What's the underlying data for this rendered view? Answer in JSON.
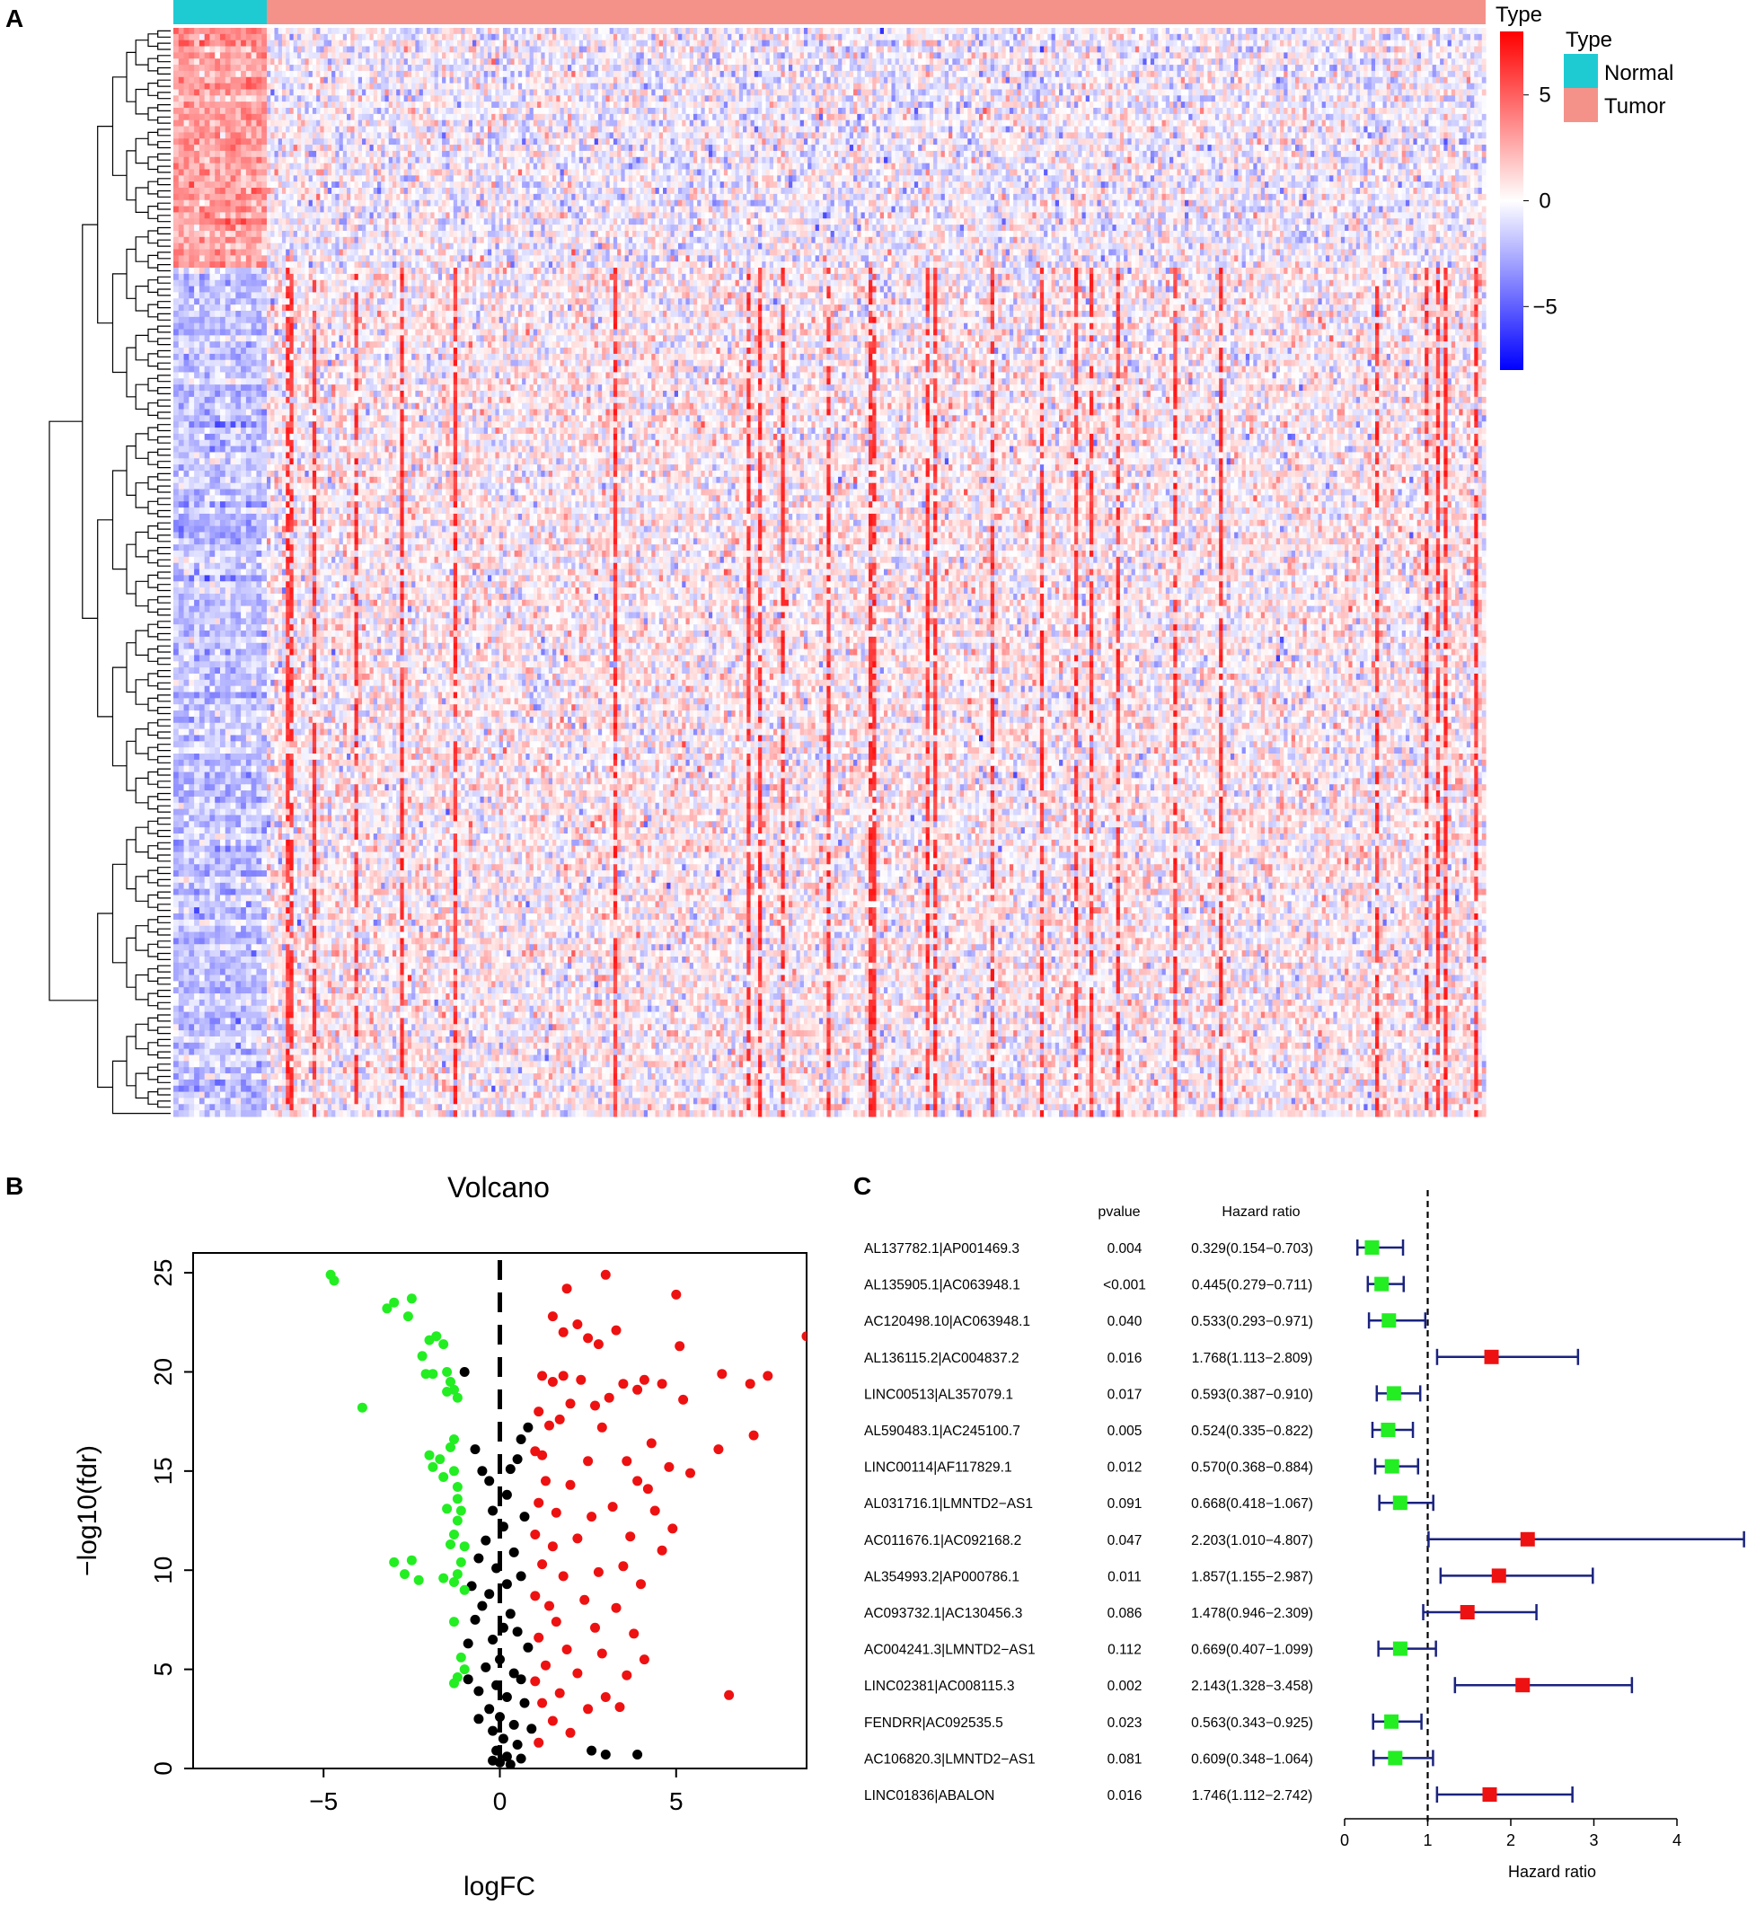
{
  "panels": {
    "a_label": "A",
    "b_label": "B",
    "c_label": "C"
  },
  "colors": {
    "normal": "#1ECBD3",
    "tumor": "#F4928A",
    "heat_low": "#0000FF",
    "heat_mid": "#FFFFFF",
    "heat_high": "#FF0000",
    "volcano_down": "#22EE22",
    "volcano_up": "#EE1111",
    "volcano_ns": "#000000",
    "forest_line": "#1A237E",
    "forest_protective": "#22EE22",
    "forest_risk": "#EE1111"
  },
  "chart_data": [
    {
      "type": "heatmap",
      "panel": "A",
      "annotation_title": "Type",
      "colorbar_title": "Type",
      "colorbar_ticks": [
        5,
        0,
        -5
      ],
      "colorbar_range": [
        -8,
        8
      ],
      "groups": [
        {
          "name": "Normal",
          "n_samples": 37
        },
        {
          "name": "Tumor",
          "n_samples": 530
        }
      ],
      "legend": [
        "Normal",
        "Tumor"
      ],
      "clusters": [
        {
          "name": "up_in_normal",
          "rows": 39,
          "normal_mean": 2.6,
          "tumor_mean": -0.2
        },
        {
          "name": "down_in_normal",
          "rows": 138,
          "normal_mean": -1.6,
          "tumor_mean": 0.25
        }
      ]
    },
    {
      "type": "scatter",
      "panel": "B",
      "title": "Volcano",
      "xlabel": "logFC",
      "ylabel": "−log10(fdr)",
      "xlim": [
        -8.7,
        8.7
      ],
      "ylim": [
        0,
        26
      ],
      "xticks": [
        -5,
        0,
        5
      ],
      "xtick_labels": [
        "−5",
        "0",
        "5"
      ],
      "yticks": [
        0,
        5,
        10,
        15,
        20,
        25
      ],
      "cutoff_x": 0,
      "series": [
        {
          "name": "down",
          "points": [
            [
              -4.8,
              24.9
            ],
            [
              -4.7,
              24.6
            ],
            [
              -3.2,
              23.2
            ],
            [
              -3.0,
              23.5
            ],
            [
              -2.5,
              23.7
            ],
            [
              -2.6,
              22.8
            ],
            [
              -2.0,
              21.6
            ],
            [
              -1.8,
              21.8
            ],
            [
              -1.6,
              21.4
            ],
            [
              -2.2,
              20.8
            ],
            [
              -2.1,
              19.9
            ],
            [
              -1.9,
              19.9
            ],
            [
              -1.5,
              20.0
            ],
            [
              -1.4,
              19.5
            ],
            [
              -1.3,
              19.1
            ],
            [
              -1.2,
              18.7
            ],
            [
              -1.5,
              19.0
            ],
            [
              -3.9,
              18.2
            ],
            [
              -1.3,
              16.6
            ],
            [
              -1.4,
              16.2
            ],
            [
              -2.0,
              15.8
            ],
            [
              -1.7,
              15.6
            ],
            [
              -1.9,
              15.2
            ],
            [
              -1.3,
              15.0
            ],
            [
              -1.6,
              14.7
            ],
            [
              -1.2,
              14.2
            ],
            [
              -1.2,
              13.6
            ],
            [
              -1.5,
              13.1
            ],
            [
              -1.1,
              13.0
            ],
            [
              -1.2,
              12.5
            ],
            [
              -1.3,
              11.8
            ],
            [
              -1.4,
              11.3
            ],
            [
              -1.0,
              11.2
            ],
            [
              -1.1,
              10.4
            ],
            [
              -1.2,
              9.8
            ],
            [
              -1.3,
              9.4
            ],
            [
              -1.6,
              9.6
            ],
            [
              -2.3,
              9.5
            ],
            [
              -2.5,
              10.5
            ],
            [
              -2.7,
              9.8
            ],
            [
              -3.0,
              10.4
            ],
            [
              -1.0,
              9.0
            ],
            [
              -1.3,
              7.4
            ],
            [
              -1.1,
              5.6
            ],
            [
              -1.0,
              5.0
            ],
            [
              -1.2,
              4.6
            ],
            [
              -1.3,
              4.3
            ]
          ]
        },
        {
          "name": "up",
          "points": [
            [
              1.9,
              24.2
            ],
            [
              3.0,
              24.9
            ],
            [
              5.0,
              23.9
            ],
            [
              8.7,
              21.8
            ],
            [
              1.5,
              22.8
            ],
            [
              1.8,
              22.0
            ],
            [
              2.2,
              22.4
            ],
            [
              2.5,
              21.7
            ],
            [
              3.3,
              22.1
            ],
            [
              2.8,
              21.4
            ],
            [
              5.1,
              21.3
            ],
            [
              6.3,
              19.9
            ],
            [
              7.1,
              19.4
            ],
            [
              7.6,
              19.8
            ],
            [
              1.2,
              19.8
            ],
            [
              1.5,
              19.5
            ],
            [
              1.8,
              19.8
            ],
            [
              2.3,
              19.6
            ],
            [
              3.5,
              19.4
            ],
            [
              3.9,
              19.1
            ],
            [
              4.1,
              19.6
            ],
            [
              4.6,
              19.4
            ],
            [
              5.2,
              18.6
            ],
            [
              1.1,
              18.0
            ],
            [
              2.0,
              18.4
            ],
            [
              2.7,
              18.3
            ],
            [
              3.1,
              18.7
            ],
            [
              1.4,
              17.3
            ],
            [
              1.7,
              17.6
            ],
            [
              2.9,
              17.2
            ],
            [
              7.2,
              16.8
            ],
            [
              4.3,
              16.4
            ],
            [
              1.0,
              16.0
            ],
            [
              1.2,
              15.8
            ],
            [
              2.5,
              15.5
            ],
            [
              3.6,
              15.5
            ],
            [
              4.8,
              15.2
            ],
            [
              5.4,
              14.9
            ],
            [
              6.2,
              16.1
            ],
            [
              1.3,
              14.5
            ],
            [
              2.0,
              14.3
            ],
            [
              3.9,
              14.5
            ],
            [
              4.2,
              14.1
            ],
            [
              1.1,
              13.4
            ],
            [
              1.6,
              12.9
            ],
            [
              2.6,
              12.7
            ],
            [
              3.2,
              13.2
            ],
            [
              4.4,
              13.0
            ],
            [
              4.9,
              12.1
            ],
            [
              1.0,
              11.8
            ],
            [
              1.5,
              11.2
            ],
            [
              2.2,
              11.6
            ],
            [
              3.7,
              11.7
            ],
            [
              4.6,
              11.0
            ],
            [
              1.2,
              10.3
            ],
            [
              1.8,
              9.7
            ],
            [
              2.8,
              9.9
            ],
            [
              3.5,
              10.2
            ],
            [
              4.0,
              9.3
            ],
            [
              1.0,
              8.7
            ],
            [
              1.4,
              8.2
            ],
            [
              2.4,
              8.5
            ],
            [
              3.3,
              8.1
            ],
            [
              1.6,
              7.4
            ],
            [
              2.7,
              7.1
            ],
            [
              3.8,
              6.8
            ],
            [
              1.1,
              6.6
            ],
            [
              1.9,
              6.0
            ],
            [
              2.9,
              5.8
            ],
            [
              4.1,
              5.5
            ],
            [
              1.3,
              5.2
            ],
            [
              2.2,
              4.8
            ],
            [
              3.6,
              4.7
            ],
            [
              1.0,
              4.4
            ],
            [
              1.7,
              3.8
            ],
            [
              3.0,
              3.6
            ],
            [
              6.5,
              3.7
            ],
            [
              1.2,
              3.3
            ],
            [
              2.5,
              3.0
            ],
            [
              1.5,
              2.4
            ],
            [
              2.0,
              1.8
            ],
            [
              1.1,
              1.3
            ],
            [
              3.4,
              3.1
            ]
          ]
        },
        {
          "name": "ns",
          "points": [
            [
              -1.0,
              20.0
            ],
            [
              -0.7,
              16.1
            ],
            [
              -0.5,
              15.0
            ],
            [
              -0.3,
              14.5
            ],
            [
              0.3,
              15.1
            ],
            [
              0.5,
              15.6
            ],
            [
              0.8,
              17.2
            ],
            [
              0.6,
              16.6
            ],
            [
              0.2,
              13.8
            ],
            [
              -0.2,
              13.0
            ],
            [
              0.1,
              12.2
            ],
            [
              -0.4,
              11.5
            ],
            [
              0.7,
              12.7
            ],
            [
              -0.6,
              10.6
            ],
            [
              0.4,
              10.9
            ],
            [
              -0.1,
              10.1
            ],
            [
              0.2,
              9.3
            ],
            [
              -0.3,
              8.8
            ],
            [
              0.6,
              9.7
            ],
            [
              -0.8,
              9.2
            ],
            [
              -0.5,
              8.2
            ],
            [
              0.3,
              7.8
            ],
            [
              0.1,
              7.1
            ],
            [
              -0.2,
              6.5
            ],
            [
              0.5,
              6.9
            ],
            [
              -0.7,
              7.5
            ],
            [
              -0.9,
              6.3
            ],
            [
              0.8,
              6.1
            ],
            [
              0.0,
              5.5
            ],
            [
              -0.4,
              5.1
            ],
            [
              0.4,
              4.8
            ],
            [
              -0.1,
              4.2
            ],
            [
              0.6,
              4.5
            ],
            [
              -0.6,
              3.9
            ],
            [
              0.2,
              3.6
            ],
            [
              -0.3,
              3.0
            ],
            [
              0.7,
              3.3
            ],
            [
              0.0,
              2.6
            ],
            [
              0.4,
              2.2
            ],
            [
              -0.2,
              1.9
            ],
            [
              0.1,
              1.5
            ],
            [
              0.5,
              1.2
            ],
            [
              -0.1,
              0.9
            ],
            [
              0.2,
              0.6
            ],
            [
              0.0,
              0.3
            ],
            [
              0.3,
              0.2
            ],
            [
              -0.2,
              0.4
            ],
            [
              0.6,
              0.5
            ],
            [
              3.0,
              0.7
            ],
            [
              3.9,
              0.7
            ],
            [
              2.6,
              0.9
            ],
            [
              -0.9,
              4.5
            ],
            [
              -0.6,
              2.5
            ],
            [
              0.9,
              2.0
            ]
          ]
        }
      ]
    },
    {
      "type": "forest",
      "panel": "C",
      "col_pvalue": "pvalue",
      "col_hr": "Hazard ratio",
      "xlabel": "Hazard ratio",
      "xlim": [
        0,
        4
      ],
      "xticks": [
        0,
        1,
        2,
        3,
        4
      ],
      "reference_line": 1,
      "rows": [
        {
          "gene": "AL137782.1|AP001469.3",
          "pvalue": "0.004",
          "hr_text": "0.329(0.154−0.703)",
          "hr": 0.329,
          "lo": 0.154,
          "hi": 0.703
        },
        {
          "gene": "AL135905.1|AC063948.1",
          "pvalue": "<0.001",
          "hr_text": "0.445(0.279−0.711)",
          "hr": 0.445,
          "lo": 0.279,
          "hi": 0.711
        },
        {
          "gene": "AC120498.10|AC063948.1",
          "pvalue": "0.040",
          "hr_text": "0.533(0.293−0.971)",
          "hr": 0.533,
          "lo": 0.293,
          "hi": 0.971
        },
        {
          "gene": "AL136115.2|AC004837.2",
          "pvalue": "0.016",
          "hr_text": "1.768(1.113−2.809)",
          "hr": 1.768,
          "lo": 1.113,
          "hi": 2.809
        },
        {
          "gene": "LINC00513|AL357079.1",
          "pvalue": "0.017",
          "hr_text": "0.593(0.387−0.910)",
          "hr": 0.593,
          "lo": 0.387,
          "hi": 0.91
        },
        {
          "gene": "AL590483.1|AC245100.7",
          "pvalue": "0.005",
          "hr_text": "0.524(0.335−0.822)",
          "hr": 0.524,
          "lo": 0.335,
          "hi": 0.822
        },
        {
          "gene": "LINC00114|AF117829.1",
          "pvalue": "0.012",
          "hr_text": "0.570(0.368−0.884)",
          "hr": 0.57,
          "lo": 0.368,
          "hi": 0.884
        },
        {
          "gene": "AL031716.1|LMNTD2−AS1",
          "pvalue": "0.091",
          "hr_text": "0.668(0.418−1.067)",
          "hr": 0.668,
          "lo": 0.418,
          "hi": 1.067
        },
        {
          "gene": "AC011676.1|AC092168.2",
          "pvalue": "0.047",
          "hr_text": "2.203(1.010−4.807)",
          "hr": 2.203,
          "lo": 1.01,
          "hi": 4.807
        },
        {
          "gene": "AL354993.2|AP000786.1",
          "pvalue": "0.011",
          "hr_text": "1.857(1.155−2.987)",
          "hr": 1.857,
          "lo": 1.155,
          "hi": 2.987
        },
        {
          "gene": "AC093732.1|AC130456.3",
          "pvalue": "0.086",
          "hr_text": "1.478(0.946−2.309)",
          "hr": 1.478,
          "lo": 0.946,
          "hi": 2.309
        },
        {
          "gene": "AC004241.3|LMNTD2−AS1",
          "pvalue": "0.112",
          "hr_text": "0.669(0.407−1.099)",
          "hr": 0.669,
          "lo": 0.407,
          "hi": 1.099
        },
        {
          "gene": "LINC02381|AC008115.3",
          "pvalue": "0.002",
          "hr_text": "2.143(1.328−3.458)",
          "hr": 2.143,
          "lo": 1.328,
          "hi": 3.458
        },
        {
          "gene": "FENDRR|AC092535.5",
          "pvalue": "0.023",
          "hr_text": "0.563(0.343−0.925)",
          "hr": 0.563,
          "lo": 0.343,
          "hi": 0.925
        },
        {
          "gene": "AC106820.3|LMNTD2−AS1",
          "pvalue": "0.081",
          "hr_text": "0.609(0.348−1.064)",
          "hr": 0.609,
          "lo": 0.348,
          "hi": 1.064
        },
        {
          "gene": "LINC01836|ABALON",
          "pvalue": "0.016",
          "hr_text": "1.746(1.112−2.742)",
          "hr": 1.746,
          "lo": 1.112,
          "hi": 2.742
        }
      ]
    }
  ]
}
